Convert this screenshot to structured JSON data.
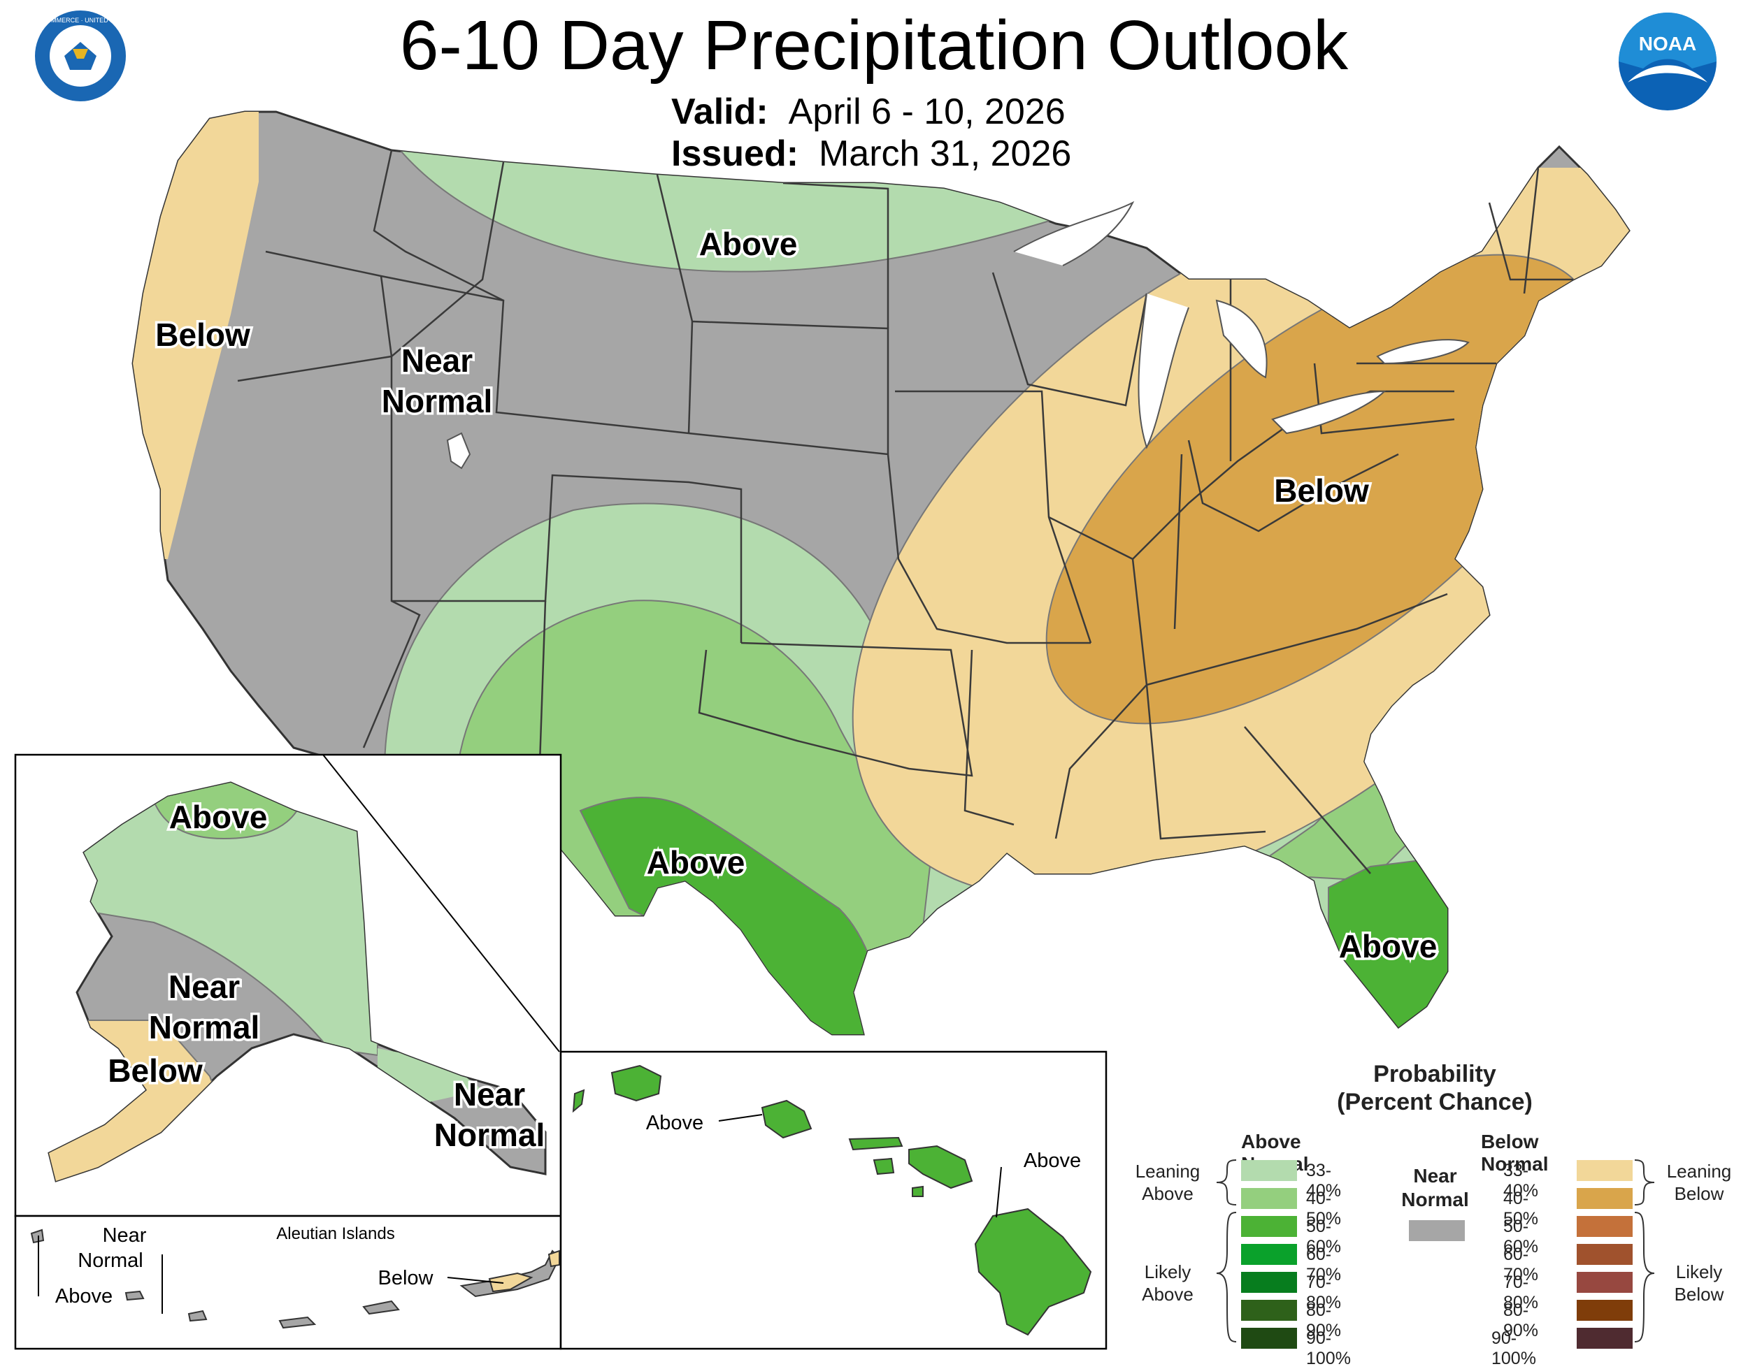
{
  "header": {
    "title": "6-10 Day Precipitation Outlook",
    "valid_label": "Valid:",
    "valid_value": "April 6 - 10, 2026",
    "issued_label": "Issued:",
    "issued_value": "March 31, 2026"
  },
  "logos": {
    "commerce_seal": "DEPARTMENT OF COMMERCE · UNITED STATES OF AMERICA",
    "noaa": "NOAA"
  },
  "map_labels": {
    "west_coast": "Below",
    "intermountain_1": "Near",
    "intermountain_2": "Normal",
    "north_plains": "Above",
    "ohio_valley": "Below",
    "texas": "Above",
    "florida": "Above"
  },
  "alaska": {
    "north": "Above",
    "center_1": "Near",
    "center_2": "Normal",
    "southwest": "Below",
    "southeast_1": "Near",
    "southeast_2": "Normal"
  },
  "aleutians": {
    "title": "Aleutian Islands",
    "near_1": "Near",
    "near_2": "Normal",
    "above": "Above",
    "below": "Below"
  },
  "hawaii": {
    "west": "Above",
    "east": "Above"
  },
  "legend": {
    "title_1": "Probability",
    "title_2": "(Percent Chance)",
    "above_title": "Above Normal",
    "below_title": "Below Normal",
    "near_1": "Near",
    "near_2": "Normal",
    "leaning_above_1": "Leaning",
    "leaning_above_2": "Above",
    "likely_above_1": "Likely",
    "likely_above_2": "Above",
    "leaning_below_1": "Leaning",
    "leaning_below_2": "Below",
    "likely_below_1": "Likely",
    "likely_below_2": "Below",
    "bins": [
      "33-40%",
      "40-50%",
      "50-60%",
      "60-70%",
      "70-80%",
      "80-90%",
      "90-100%"
    ],
    "above_colors": [
      "#b3dbae",
      "#94cf7e",
      "#4cb235",
      "#0aa12b",
      "#077d1e",
      "#2e611a",
      "#1f4a13"
    ],
    "below_colors": [
      "#f2d799",
      "#d9a54b",
      "#c4713a",
      "#a0522d",
      "#974840",
      "#7f3d0a",
      "#4f2b30"
    ],
    "near_color": "#a6a6a6"
  }
}
